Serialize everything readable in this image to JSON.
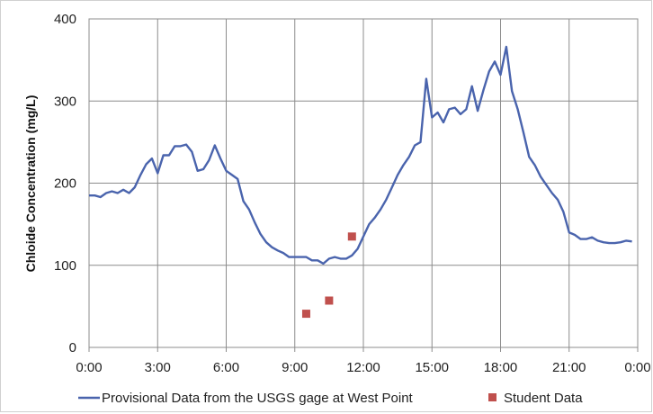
{
  "chart_data": {
    "type": "line",
    "title": "",
    "xlabel": "",
    "ylabel": "Chloide Concentration (mg/L)",
    "x_tick_labels": [
      "0:00",
      "3:00",
      "6:00",
      "9:00",
      "12:00",
      "15:00",
      "18:00",
      "21:00",
      "0:00"
    ],
    "x_ticks_hours": [
      0,
      3,
      6,
      9,
      12,
      15,
      18,
      21,
      24
    ],
    "xlim_hours": [
      0,
      24
    ],
    "y_ticks": [
      "0",
      "100",
      "200",
      "300",
      "400"
    ],
    "ylim": [
      0,
      400
    ],
    "grid": true,
    "legend_position": "bottom",
    "series": [
      {
        "name": "Provisional Data from the USGS gage at West Point",
        "type": "line",
        "color": "#4a64ad",
        "x_hours": [
          0.0,
          0.25,
          0.5,
          0.75,
          1.0,
          1.25,
          1.5,
          1.75,
          2.0,
          2.25,
          2.5,
          2.75,
          3.0,
          3.25,
          3.5,
          3.75,
          4.0,
          4.25,
          4.5,
          4.75,
          5.0,
          5.25,
          5.5,
          5.75,
          6.0,
          6.25,
          6.5,
          6.75,
          7.0,
          7.25,
          7.5,
          7.75,
          8.0,
          8.25,
          8.5,
          8.75,
          9.0,
          9.25,
          9.5,
          9.75,
          10.0,
          10.25,
          10.5,
          10.75,
          11.0,
          11.25,
          11.5,
          11.75,
          12.0,
          12.25,
          12.5,
          12.75,
          13.0,
          13.25,
          13.5,
          13.75,
          14.0,
          14.25,
          14.5,
          14.75,
          15.0,
          15.25,
          15.5,
          15.75,
          16.0,
          16.25,
          16.5,
          16.75,
          17.0,
          17.25,
          17.5,
          17.75,
          18.0,
          18.25,
          18.5,
          18.75,
          19.0,
          19.25,
          19.5,
          19.75,
          20.0,
          20.25,
          20.5,
          20.75,
          21.0,
          21.25,
          21.5,
          21.75,
          22.0,
          22.25,
          22.5,
          22.75,
          23.0,
          23.25,
          23.5,
          23.75
        ],
        "values": [
          185,
          185,
          183,
          188,
          190,
          188,
          192,
          188,
          195,
          210,
          223,
          230,
          212,
          234,
          234,
          245,
          245,
          247,
          238,
          215,
          217,
          228,
          246,
          230,
          215,
          210,
          205,
          178,
          168,
          152,
          138,
          128,
          122,
          118,
          115,
          110,
          110,
          110,
          110,
          106,
          106,
          102,
          108,
          110,
          108,
          108,
          112,
          120,
          135,
          150,
          158,
          168,
          180,
          195,
          210,
          222,
          232,
          246,
          250,
          327,
          280,
          286,
          274,
          290,
          292,
          284,
          290,
          318,
          288,
          313,
          336,
          348,
          332,
          366,
          312,
          290,
          262,
          232,
          222,
          208,
          198,
          188,
          180,
          165,
          140,
          137,
          132,
          132,
          134,
          130,
          128,
          127,
          127,
          128,
          130,
          129
        ]
      },
      {
        "name": "Student Data",
        "type": "scatter",
        "color": "#c0504d",
        "x_hours": [
          9.5,
          10.5,
          11.5
        ],
        "values": [
          41,
          57,
          135
        ]
      }
    ]
  }
}
